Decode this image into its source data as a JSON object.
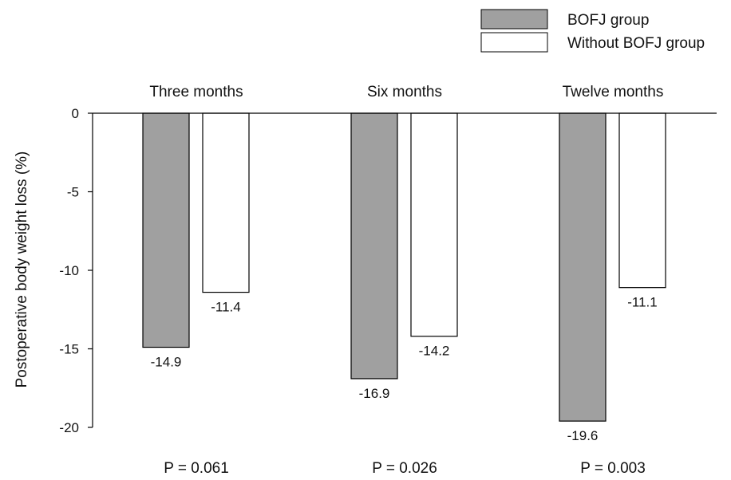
{
  "chart_data": {
    "type": "bar",
    "categories": [
      "Three months",
      "Six months",
      "Twelve months"
    ],
    "series": [
      {
        "name": "BOFJ group",
        "values": [
          -14.9,
          -16.9,
          -19.6
        ],
        "color": "#a0a0a0"
      },
      {
        "name": "Without BOFJ group",
        "values": [
          -11.4,
          -14.2,
          -11.1
        ],
        "color": "#ffffff"
      }
    ],
    "data_labels": {
      "BOFJ group": [
        "-14.9",
        "-16.9",
        "-19.6"
      ],
      "Without BOFJ group": [
        "-11.4",
        "-14.2",
        "-11.1"
      ]
    },
    "p_values": [
      "P = 0.061",
      "P = 0.026",
      "P = 0.003"
    ],
    "ylabel": "Postoperative body weight loss (%)",
    "xlabel": "",
    "title": "",
    "ylim": [
      -20,
      0
    ],
    "yticks": [
      0,
      -5,
      -10,
      -15,
      -20
    ],
    "ytick_labels": [
      "0",
      "-5",
      "-10",
      "-15",
      "-20"
    ],
    "category_labels_position": "top",
    "legend_position": "top-right",
    "grid": false
  }
}
